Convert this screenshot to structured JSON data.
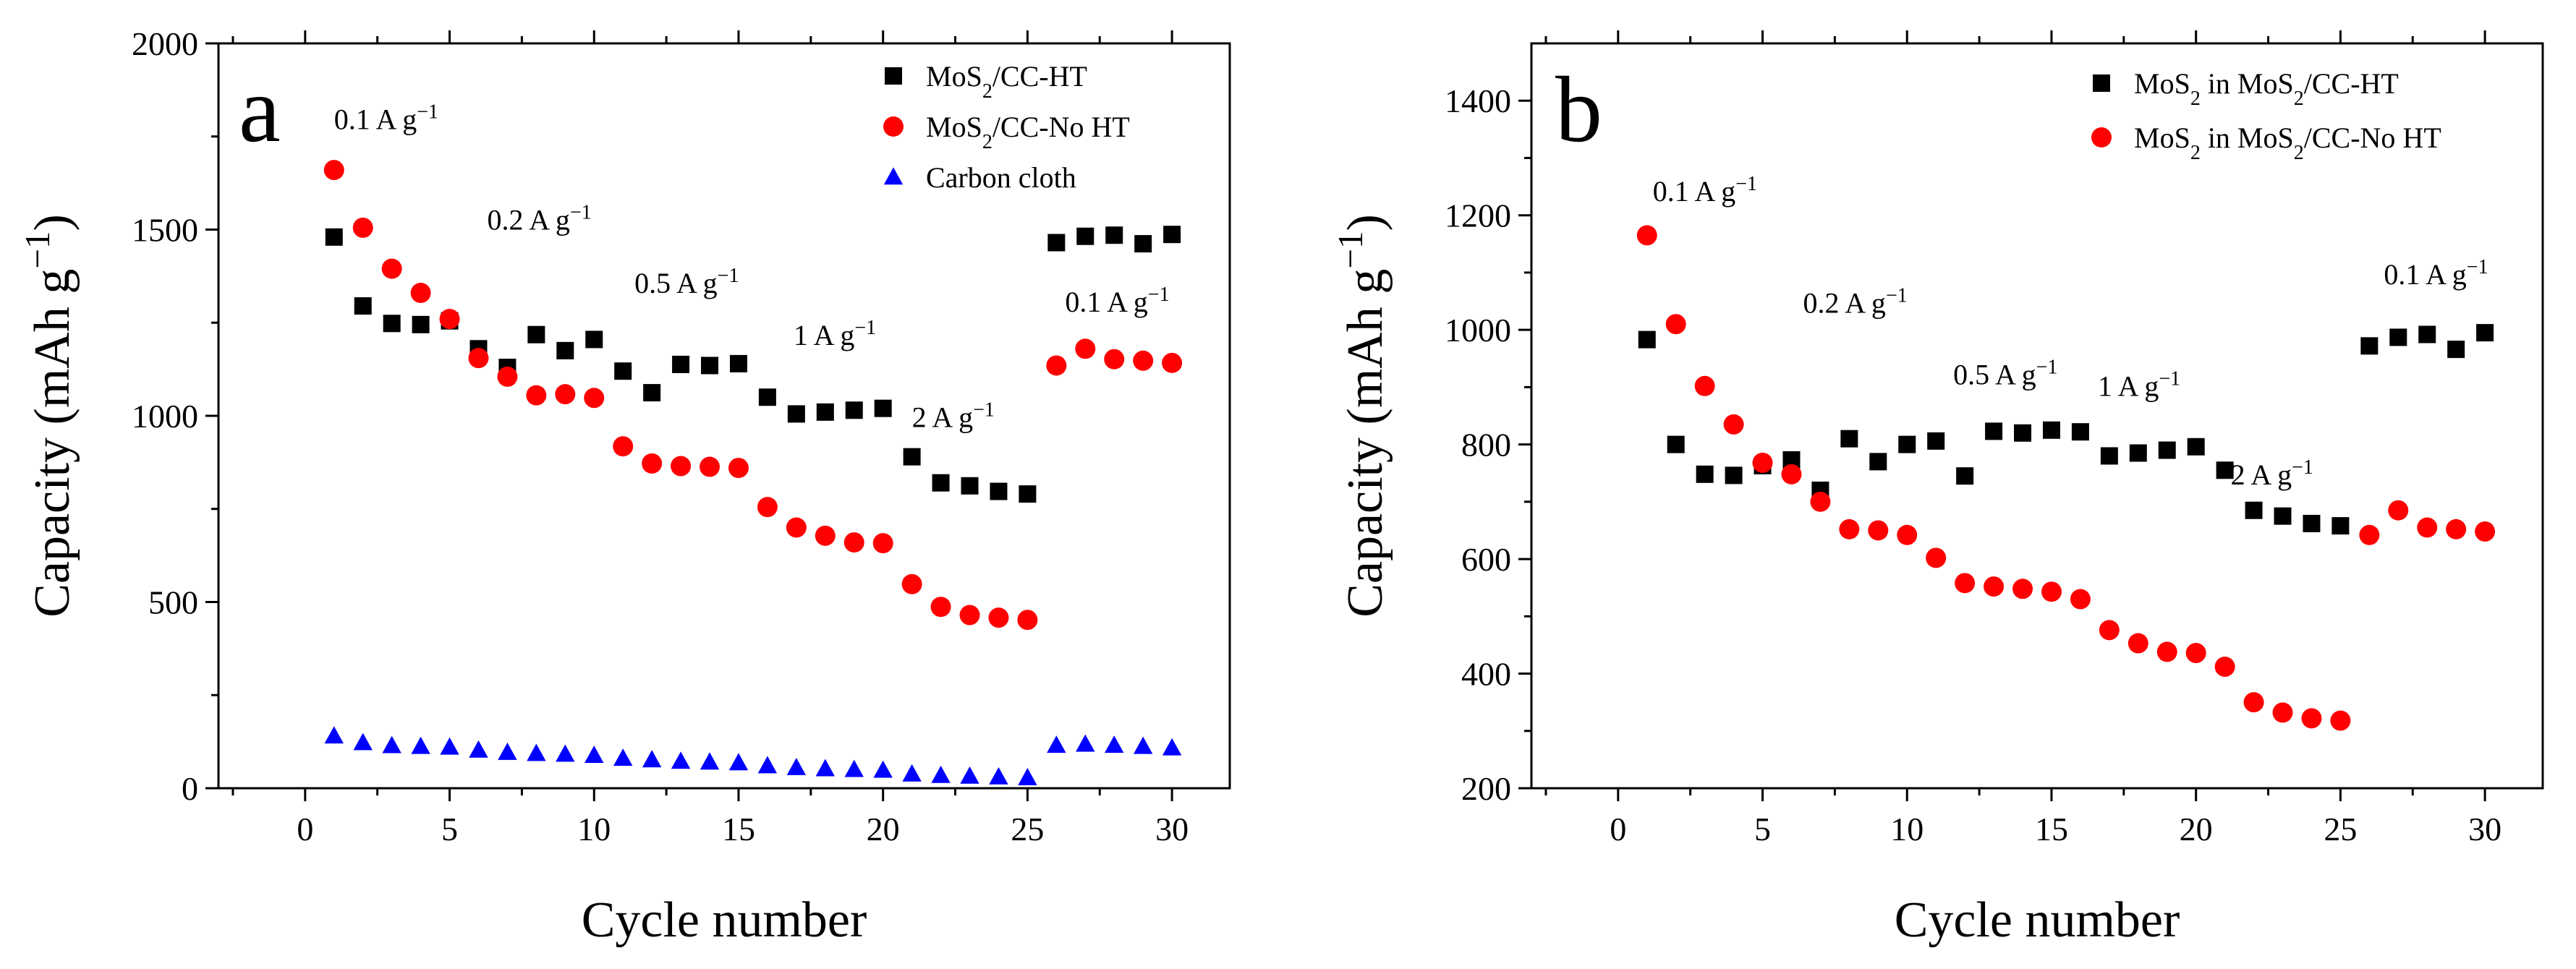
{
  "chart_data": [
    {
      "panel": "a",
      "type": "scatter",
      "xlabel": "Cycle number",
      "ylabel": "Capacity (mAh g⁻¹)",
      "xlim": [
        -3,
        32
      ],
      "ylim": [
        0,
        2000
      ],
      "xticks": [
        0,
        5,
        10,
        15,
        20,
        25,
        30
      ],
      "yticks": [
        0,
        500,
        1000,
        1500,
        2000
      ],
      "legend_position": "top-right",
      "series": [
        {
          "name": "MoS₂/CC-HT",
          "marker": "square",
          "color": "#000000",
          "x": [
            1,
            2,
            3,
            4,
            5,
            6,
            7,
            8,
            9,
            10,
            11,
            12,
            13,
            14,
            15,
            16,
            17,
            18,
            19,
            20,
            21,
            22,
            23,
            24,
            25,
            26,
            27,
            28,
            29,
            30
          ],
          "y": [
            1480,
            1295,
            1248,
            1245,
            1255,
            1180,
            1130,
            1218,
            1175,
            1205,
            1120,
            1062,
            1138,
            1135,
            1140,
            1050,
            1005,
            1010,
            1015,
            1020,
            890,
            820,
            812,
            797,
            790,
            1465,
            1482,
            1485,
            1462,
            1487
          ]
        },
        {
          "name": "MoS₂/CC-No HT",
          "marker": "circle",
          "color": "#ff0000",
          "x": [
            1,
            2,
            3,
            4,
            5,
            6,
            7,
            8,
            9,
            10,
            11,
            12,
            13,
            14,
            15,
            16,
            17,
            18,
            19,
            20,
            21,
            22,
            23,
            24,
            25,
            26,
            27,
            28,
            29,
            30
          ],
          "y": [
            1660,
            1505,
            1395,
            1330,
            1260,
            1155,
            1105,
            1055,
            1058,
            1048,
            918,
            872,
            865,
            863,
            860,
            755,
            700,
            678,
            660,
            658,
            548,
            487,
            465,
            458,
            452,
            1135,
            1180,
            1152,
            1148,
            1142
          ]
        },
        {
          "name": "Carbon cloth",
          "marker": "triangle",
          "color": "#0000ff",
          "x": [
            1,
            2,
            3,
            4,
            5,
            6,
            7,
            8,
            9,
            10,
            11,
            12,
            13,
            14,
            15,
            16,
            17,
            18,
            19,
            20,
            21,
            22,
            23,
            24,
            25,
            26,
            27,
            28,
            29,
            30
          ],
          "y": [
            140,
            122,
            114,
            112,
            110,
            102,
            96,
            93,
            91,
            88,
            80,
            76,
            72,
            70,
            68,
            60,
            55,
            52,
            50,
            48,
            38,
            34,
            32,
            30,
            28,
            115,
            118,
            115,
            112,
            108
          ]
        }
      ],
      "annotations": [
        {
          "text": "0.1 A g⁻¹",
          "x": 1.0,
          "y": 1770
        },
        {
          "text": "0.2 A g⁻¹",
          "x": 6.3,
          "y": 1500
        },
        {
          "text": "0.5 A g⁻¹",
          "x": 11.4,
          "y": 1330
        },
        {
          "text": "1 A g⁻¹",
          "x": 16.9,
          "y": 1190
        },
        {
          "text": "2 A g⁻¹",
          "x": 21.0,
          "y": 970
        },
        {
          "text": "0.1 A g⁻¹",
          "x": 26.3,
          "y": 1280
        }
      ]
    },
    {
      "panel": "b",
      "type": "scatter",
      "xlabel": "Cycle number",
      "ylabel": "Capacity (mAh g⁻¹)",
      "xlim": [
        -3,
        32
      ],
      "ylim": [
        200,
        1500
      ],
      "xticks": [
        0,
        5,
        10,
        15,
        20,
        25,
        30
      ],
      "yticks": [
        200,
        400,
        600,
        800,
        1000,
        1200,
        1400
      ],
      "legend_position": "top-right",
      "series": [
        {
          "name": "MoS₂ in MoS₂/CC-HT",
          "marker": "square",
          "color": "#000000",
          "x": [
            1,
            2,
            3,
            4,
            5,
            6,
            7,
            8,
            9,
            10,
            11,
            12,
            13,
            14,
            15,
            16,
            17,
            18,
            19,
            20,
            21,
            22,
            23,
            24,
            25,
            26,
            27,
            28,
            29,
            30
          ],
          "y": [
            983,
            800,
            748,
            746,
            763,
            773,
            720,
            810,
            770,
            800,
            806,
            745,
            823,
            820,
            825,
            822,
            780,
            785,
            790,
            796,
            755,
            685,
            675,
            662,
            658,
            972,
            987,
            992,
            966,
            995
          ]
        },
        {
          "name": "MoS₂ in MoS₂/CC-No HT",
          "marker": "circle",
          "color": "#ff0000",
          "x": [
            1,
            2,
            3,
            4,
            5,
            6,
            7,
            8,
            9,
            10,
            11,
            12,
            13,
            14,
            15,
            16,
            17,
            18,
            19,
            20,
            21,
            22,
            23,
            24,
            25,
            26,
            27,
            28,
            29,
            30
          ],
          "y": [
            1165,
            1010,
            902,
            835,
            768,
            748,
            700,
            652,
            650,
            642,
            602,
            558,
            552,
            548,
            543,
            530,
            476,
            453,
            438,
            436,
            412,
            350,
            332,
            322,
            318,
            642,
            685,
            655,
            652,
            648
          ]
        }
      ],
      "annotations": [
        {
          "text": "0.1 A g⁻¹",
          "x": 1.2,
          "y": 1225
        },
        {
          "text": "0.2 A g⁻¹",
          "x": 6.4,
          "y": 1030
        },
        {
          "text": "0.5 A g⁻¹",
          "x": 11.6,
          "y": 905
        },
        {
          "text": "1 A g⁻¹",
          "x": 16.6,
          "y": 885
        },
        {
          "text": "2 A g⁻¹",
          "x": 21.2,
          "y": 730
        },
        {
          "text": "0.1 A g⁻¹",
          "x": 26.5,
          "y": 1080
        }
      ]
    }
  ]
}
